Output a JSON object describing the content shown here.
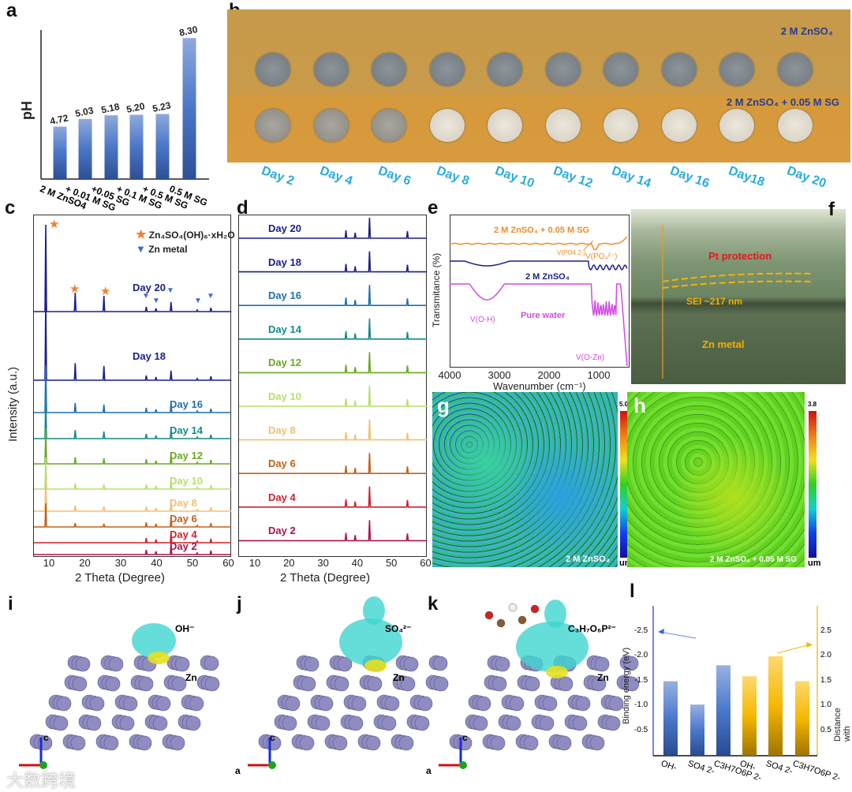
{
  "panels": {
    "a": "a",
    "b": "b",
    "c": "c",
    "d": "d",
    "e": "e",
    "f": "f",
    "g": "g",
    "h": "h",
    "i": "i",
    "j": "j",
    "k": "k",
    "l": "l"
  },
  "chart_data": [
    {
      "id": "a",
      "type": "bar",
      "ylabel": "pH",
      "categories": [
        "2 M ZnSO4",
        "+ 0.01 M SG",
        "+0.05 SG",
        "+ 0.1 M SG",
        "+ 0.5 M SG",
        "0.5 M SG"
      ],
      "values": [
        4.72,
        5.03,
        5.18,
        5.2,
        5.23,
        8.3
      ],
      "value_labels": [
        "4.72",
        "5.03",
        "5.18",
        "5.20",
        "5.23",
        "8.30"
      ],
      "ylim": [
        2.6,
        8.5
      ],
      "colors": {
        "top": "#8fa9dc",
        "bottom": "#2e4f94"
      }
    },
    {
      "id": "c",
      "type": "line",
      "xlabel": "2 Theta (Degree)",
      "ylabel": "Intensity (a.u.)",
      "xlim": [
        5,
        60
      ],
      "xticks": [
        "10",
        "20",
        "30",
        "40",
        "50",
        "60"
      ],
      "legend": [
        {
          "label": "Zn4SO4(OH)6·xH2O",
          "marker": "star",
          "color": "#f07f2e"
        },
        {
          "label": "Zn metal",
          "marker": "triangle-down",
          "color": "#3a6fc4"
        }
      ],
      "series": [
        {
          "name": "Day 20",
          "color": "#1a1f8c",
          "zhs": 1.0
        },
        {
          "name": "Day 18",
          "color": "#1a1f8c",
          "zhs": 0.9
        },
        {
          "name": "Day 16",
          "color": "#1f6fb0",
          "zhs": 0.5
        },
        {
          "name": "Day 14",
          "color": "#138a8a",
          "zhs": 0.45
        },
        {
          "name": "Day 12",
          "color": "#6aa820",
          "zhs": 0.35
        },
        {
          "name": "Day 10",
          "color": "#b5e06a",
          "zhs": 0.3
        },
        {
          "name": "Day 8",
          "color": "#f0c070",
          "zhs": 0.3
        },
        {
          "name": "Day 6",
          "color": "#c0601a",
          "zhs": 0.2
        },
        {
          "name": "Day 4",
          "color": "#d0202a",
          "zhs": 0.0
        },
        {
          "name": "Day 2",
          "color": "#b01050",
          "zhs": 0.0
        }
      ],
      "zhs_peaks": [
        8.3,
        16.5,
        24.5
      ],
      "zn_peaks": [
        36.3,
        39.0,
        43.2,
        50.5,
        54.3
      ]
    },
    {
      "id": "d",
      "type": "line",
      "xlabel": "2 Theta (Degree)",
      "xlim": [
        5,
        60
      ],
      "xticks": [
        "10",
        "20",
        "30",
        "40",
        "50",
        "60"
      ],
      "series": [
        {
          "name": "Day 20",
          "color": "#1a1f8c"
        },
        {
          "name": "Day 18",
          "color": "#1a1f8c"
        },
        {
          "name": "Day 16",
          "color": "#1f6fb0"
        },
        {
          "name": "Day 14",
          "color": "#138a8a"
        },
        {
          "name": "Day 12",
          "color": "#6aa820"
        },
        {
          "name": "Day 10",
          "color": "#b5e06a"
        },
        {
          "name": "Day 8",
          "color": "#f0c070"
        },
        {
          "name": "Day 6",
          "color": "#c0601a"
        },
        {
          "name": "Day 4",
          "color": "#d0202a"
        },
        {
          "name": "Day 2",
          "color": "#b01050"
        }
      ],
      "zn_peaks": [
        36.3,
        39.0,
        43.2,
        54.3
      ]
    },
    {
      "id": "e",
      "type": "line",
      "xlabel": "Wavenumber (cm-1)",
      "ylabel": "Transmitance (%)",
      "xlim": [
        4000,
        400
      ],
      "xticks": [
        "4000",
        "3000",
        "2000",
        "1000"
      ],
      "series": [
        {
          "name": "2 M ZnSO4 + 0.05 M SG",
          "color": "#f28a1e"
        },
        {
          "name": "2 M ZnSO4",
          "color": "#1a1f8c"
        },
        {
          "name": "Pure water",
          "color": "#d24be0"
        }
      ],
      "annotations": [
        "V(PO4 2-)",
        "V(O-H)",
        "Pure water",
        "V(O-Zn)"
      ]
    },
    {
      "id": "l",
      "type": "bar",
      "ylabel": "Binding energy (eV)",
      "y2label": "Distance with subtract (A)",
      "categories": [
        "OH-",
        "SO4 2-",
        "C3H7O6P 2-",
        "OH-",
        "SO4 2-",
        "C3H7O6P 2-"
      ],
      "series": [
        {
          "name": "Binding energy",
          "axis": "left",
          "values": [
            -1.5,
            -1.03,
            -1.82,
            null,
            null,
            null
          ],
          "color": "#3c64b4"
        },
        {
          "name": "Distance",
          "axis": "right",
          "values": [
            null,
            null,
            null,
            1.6,
            2.0,
            1.5
          ],
          "color": "#f0b400"
        }
      ],
      "yticks": [
        "-0.5",
        "-1.0",
        "-1.5",
        "-2.0",
        "-2.5"
      ],
      "y2ticks": [
        "0.5",
        "1.0",
        "1.5",
        "2.0",
        "2.5"
      ],
      "ylim": [
        0,
        -3.0
      ],
      "y2lim": [
        0,
        3.0
      ]
    }
  ],
  "b": {
    "row1": "2 M ZnSO₄",
    "row2": "2 M ZnSO₄ + 0.05 M SG",
    "days": [
      "Day 2",
      "Day 4",
      "Day 6",
      "Day 8",
      "Day 10",
      "Day 12",
      "Day 14",
      "Day 16",
      "Day18",
      "Day 20"
    ]
  },
  "c_text": {
    "legend1": "Zn₄SO₄(OH)₆·xH₂O",
    "legend2": "Zn metal",
    "ylabel": "Intensity (a.u.)",
    "xlabel": "2 Theta (Degree)"
  },
  "e_text": {
    "s1": "2 M ZnSO₄ + 0.05 M SG",
    "s2": "2 M ZnSO₄",
    "s3": "Pure water",
    "a1": "V(PO₄²⁻)",
    "a2": "V(O-H)",
    "a3": "V(O-Zn)",
    "ylabel": "Transmitance (%)",
    "xlabel": "Wavenumber (cm⁻¹)"
  },
  "f": {
    "pt": "Pt protection",
    "sei": "SEI ~217 nm",
    "zn": "Zn metal"
  },
  "g": {
    "max": "5.0",
    "unit": "um",
    "caption": "2 M ZnSO₄"
  },
  "h": {
    "max": "3.8",
    "unit": "um",
    "caption": "2 M ZnSO₄ + 0.05 M SG"
  },
  "i": {
    "ion": "OH⁻",
    "metal": "Zn",
    "axis_c": "c"
  },
  "j": {
    "ion": "SO₄²⁻",
    "metal": "Zn",
    "axis_c": "c",
    "axis_a": "a"
  },
  "k": {
    "ion": "C₃H₇O₆P²⁻",
    "metal": "Zn",
    "axis_c": "c",
    "axis_a": "a"
  },
  "l_text": {
    "ylabel": "Binding energy (eV)",
    "y2label": "Distance with subtract (A)"
  },
  "watermark": "大数跨境"
}
